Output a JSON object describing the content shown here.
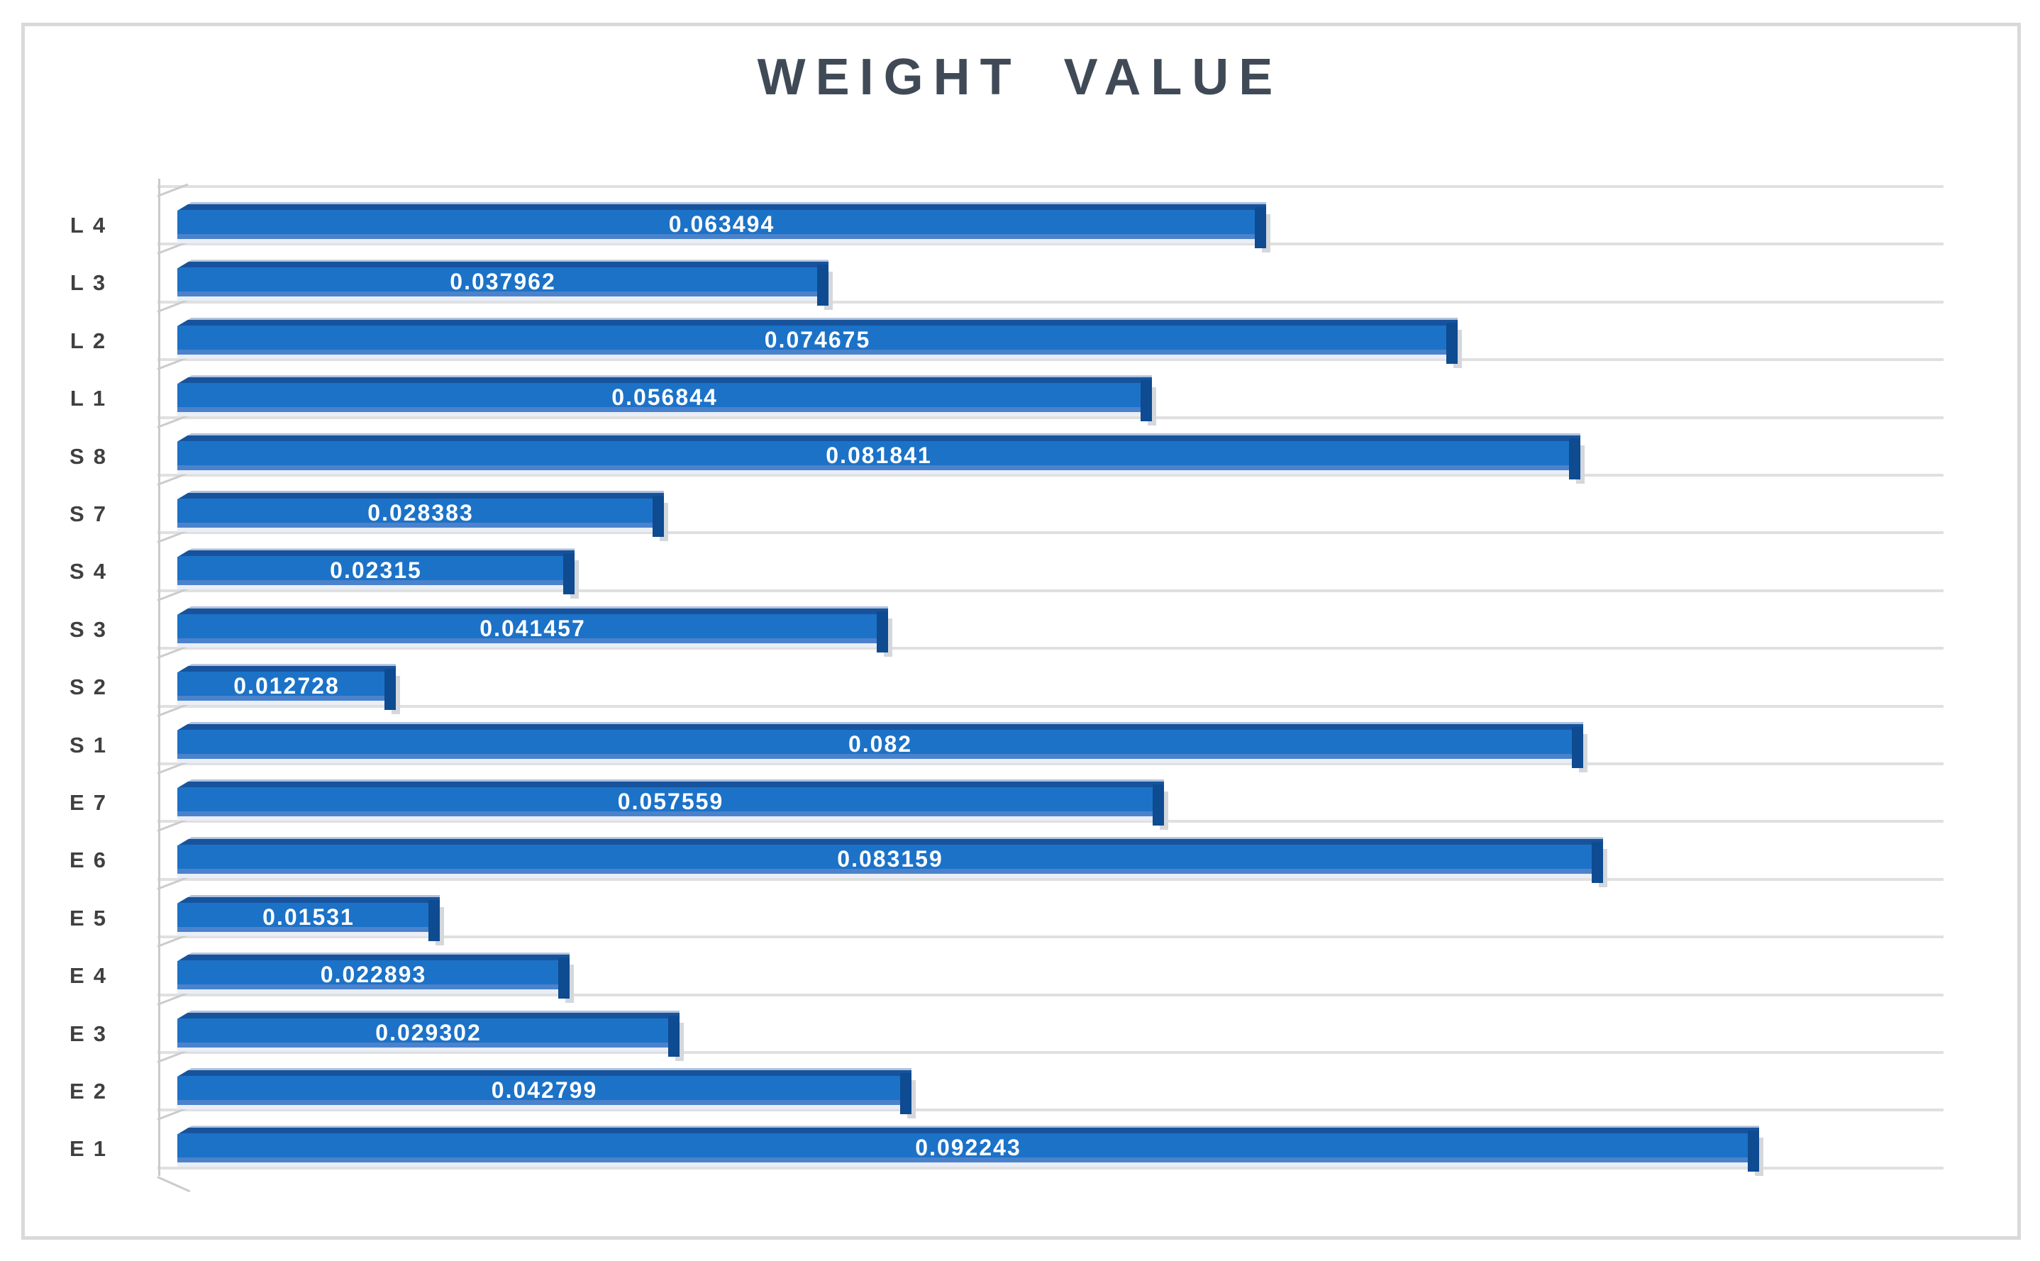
{
  "chart_data": {
    "type": "bar",
    "orientation": "horizontal",
    "style": "3d-bevel-bars",
    "title": "WEIGHT VALUE",
    "categories": [
      "L4",
      "L3",
      "L2",
      "L1",
      "S8",
      "S7",
      "S4",
      "S3",
      "S2",
      "S1",
      "E7",
      "E6",
      "E5",
      "E4",
      "E3",
      "E2",
      "E1"
    ],
    "values": [
      0.063494,
      0.037962,
      0.074675,
      0.056844,
      0.081841,
      0.028383,
      0.02315,
      0.041457,
      0.012728,
      0.082,
      0.057559,
      0.083159,
      0.01531,
      0.022893,
      0.029302,
      0.042799,
      0.092243
    ],
    "xlabel": "",
    "ylabel": "",
    "xlim": [
      0,
      0.103
    ],
    "grid": "category-separator-lines",
    "legend": "none",
    "value_labels": "inside-center-white"
  },
  "colors": {
    "bar_fill": "#1c72c7",
    "bar_top_shade": "#17539d",
    "bar_top_highlight": "#afc2de",
    "bar_bottom_shade": "#4b82cb",
    "bar_bottom_highlight": "#e9eef8",
    "bar_end_cap": "#0e4b90",
    "value_label_text": "#ffffff",
    "category_label_text": "#404040",
    "title_text": "#404a57",
    "gridline": "#e0e0e0",
    "wall_line": "#cbcbcb",
    "frame_border": "#d9d9d9",
    "background": "#ffffff"
  }
}
